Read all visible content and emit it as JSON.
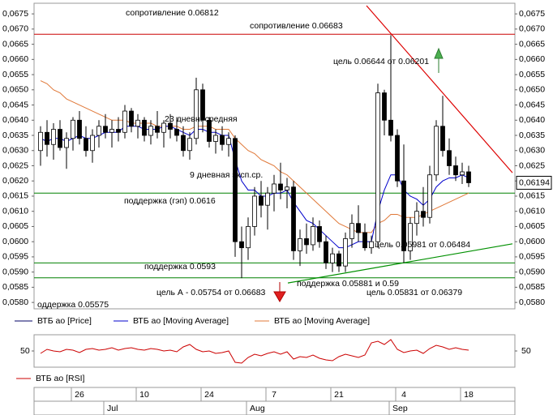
{
  "chart_data": {
    "type": "candlestick",
    "x": [
      null,
      null,
      null,
      null,
      null,
      null,
      "26",
      null,
      null,
      null,
      null,
      null,
      null,
      null,
      null,
      null,
      "10",
      null,
      null,
      null,
      null,
      null,
      null,
      null,
      null,
      null,
      "24",
      null,
      null,
      null,
      null,
      null,
      null,
      null,
      null,
      null,
      "7",
      null,
      null,
      null,
      null,
      null,
      null,
      null,
      null,
      null,
      "21",
      null,
      null,
      null,
      null,
      null,
      null,
      null,
      null,
      null,
      "4",
      null,
      null,
      null,
      null,
      null,
      null,
      null,
      null,
      null,
      "18"
    ],
    "x_months": [
      null,
      null,
      null,
      null,
      null,
      null,
      null,
      null,
      null,
      null,
      "Jul",
      null,
      null,
      null,
      null,
      null,
      null,
      null,
      null,
      null,
      null,
      null,
      null,
      null,
      null,
      null,
      null,
      null,
      null,
      null,
      null,
      null,
      "Aug",
      null,
      null,
      null,
      null,
      null,
      null,
      null,
      null,
      null,
      null,
      null,
      null,
      null,
      null,
      null,
      null,
      null,
      null,
      null,
      null,
      null,
      "Sep",
      null,
      null,
      null,
      null,
      null,
      null,
      null,
      null,
      null,
      null,
      null,
      null
    ],
    "series": [
      {
        "name": "ВТБ ао [Price]",
        "color": "#000066",
        "open": [
          0.063,
          0.0636,
          0.0632,
          0.0637,
          0.0631,
          0.0634,
          0.064,
          0.0634,
          0.063,
          0.0635,
          0.0638,
          0.0636,
          0.0637,
          0.0636,
          0.0643,
          0.0638,
          0.064,
          0.0635,
          0.0638,
          0.0636,
          0.0639,
          0.0637,
          0.0635,
          0.063,
          0.0634,
          0.065,
          0.064,
          0.0633,
          0.0635,
          0.0632,
          0.0634,
          0.06,
          0.0598,
          0.0605,
          0.0615,
          0.0612,
          0.0616,
          0.0619,
          0.0617,
          0.0618,
          0.0597,
          0.0601,
          0.0599,
          0.0605,
          0.06,
          0.0593,
          0.0596,
          0.0592,
          0.0601,
          0.0606,
          0.0603,
          0.0598,
          0.06,
          0.0649,
          0.064,
          0.0635,
          0.062,
          0.0597,
          0.0606,
          0.061,
          0.0608,
          0.0622,
          0.0638,
          0.063,
          0.0625,
          0.0622,
          0.0623
        ],
        "high": [
          0.0638,
          0.064,
          0.0639,
          0.064,
          0.0636,
          0.0641,
          0.0643,
          0.0638,
          0.0637,
          0.064,
          0.0642,
          0.064,
          0.0641,
          0.0645,
          0.0644,
          0.0642,
          0.0641,
          0.064,
          0.0643,
          0.064,
          0.0642,
          0.0641,
          0.0638,
          0.0636,
          0.0654,
          0.0652,
          0.0641,
          0.0637,
          0.0638,
          0.0636,
          0.0635,
          0.0605,
          0.0608,
          0.0618,
          0.062,
          0.0618,
          0.0622,
          0.0626,
          0.0621,
          0.062,
          0.0604,
          0.0606,
          0.0608,
          0.0607,
          0.0602,
          0.0598,
          0.0597,
          0.0603,
          0.0609,
          0.0612,
          0.0606,
          0.0602,
          0.0652,
          0.065,
          0.0668,
          0.0637,
          0.0632,
          0.0608,
          0.0613,
          0.0618,
          0.0625,
          0.064,
          0.0648,
          0.0634,
          0.0628,
          0.0626,
          0.0625
        ],
        "low": [
          0.0625,
          0.0628,
          0.0627,
          0.063,
          0.0624,
          0.063,
          0.0632,
          0.0628,
          0.0626,
          0.0631,
          0.0634,
          0.0631,
          0.0633,
          0.0634,
          0.0636,
          0.0634,
          0.0633,
          0.0632,
          0.0634,
          0.0631,
          0.0634,
          0.0633,
          0.0628,
          0.0627,
          0.0632,
          0.0636,
          0.0631,
          0.0629,
          0.063,
          0.0628,
          0.0595,
          0.0588,
          0.0594,
          0.0602,
          0.0608,
          0.0604,
          0.061,
          0.0614,
          0.0611,
          0.0594,
          0.0592,
          0.0596,
          0.0597,
          0.0598,
          0.0591,
          0.059,
          0.059,
          0.059,
          0.0598,
          0.06,
          0.0597,
          0.0596,
          0.0598,
          0.0635,
          0.0633,
          0.0618,
          0.0593,
          0.0594,
          0.0602,
          0.0605,
          0.0606,
          0.062,
          0.0628,
          0.0622,
          0.062,
          0.0619,
          0.0618
        ],
        "close": [
          0.0636,
          0.0632,
          0.0637,
          0.0631,
          0.0634,
          0.064,
          0.0634,
          0.063,
          0.0635,
          0.0638,
          0.0636,
          0.0637,
          0.0636,
          0.0643,
          0.0638,
          0.064,
          0.0635,
          0.0638,
          0.0636,
          0.0639,
          0.0637,
          0.0635,
          0.063,
          0.0634,
          0.065,
          0.064,
          0.0633,
          0.0635,
          0.0632,
          0.0634,
          0.06,
          0.0598,
          0.0605,
          0.0615,
          0.0612,
          0.0616,
          0.0619,
          0.0617,
          0.0618,
          0.0597,
          0.0601,
          0.0599,
          0.0605,
          0.06,
          0.0593,
          0.0596,
          0.0592,
          0.0601,
          0.0606,
          0.0603,
          0.0598,
          0.06,
          0.0649,
          0.064,
          0.0635,
          0.062,
          0.0597,
          0.0606,
          0.061,
          0.0608,
          0.0622,
          0.0638,
          0.063,
          0.0625,
          0.0622,
          0.0623,
          0.06194
        ]
      },
      {
        "name": "ВТБ ао [Moving Average]",
        "color": "#0000cc",
        "values": [
          0.0634,
          0.0633,
          0.0634,
          0.0634,
          0.0633,
          0.0634,
          0.0635,
          0.0634,
          0.0634,
          0.0635,
          0.0636,
          0.0636,
          0.0636,
          0.0638,
          0.0638,
          0.0638,
          0.0637,
          0.0637,
          0.0637,
          0.0638,
          0.0638,
          0.0637,
          0.0636,
          0.0635,
          0.0637,
          0.0637,
          0.0636,
          0.0636,
          0.0635,
          0.0635,
          0.0627,
          0.062,
          0.0617,
          0.0617,
          0.0615,
          0.0615,
          0.0616,
          0.0616,
          0.0617,
          0.0613,
          0.061,
          0.0607,
          0.0606,
          0.0604,
          0.0602,
          0.06,
          0.0598,
          0.0598,
          0.0599,
          0.06,
          0.06,
          0.06,
          0.061,
          0.0617,
          0.0622,
          0.0622,
          0.0617,
          0.0615,
          0.0614,
          0.0612,
          0.0614,
          0.0618,
          0.062,
          0.0621,
          0.0621,
          0.0622,
          0.0621
        ]
      },
      {
        "name": "ВТБ ао [Moving Average]",
        "color": "#e07838",
        "values": [
          0.0653,
          0.0652,
          0.065,
          0.0649,
          0.0647,
          0.0646,
          0.0645,
          0.0644,
          0.0643,
          0.0642,
          0.0641,
          0.064,
          0.064,
          0.064,
          0.0639,
          0.0639,
          0.0639,
          0.0639,
          0.0638,
          0.0638,
          0.0638,
          0.0638,
          0.0637,
          0.0637,
          0.0638,
          0.0638,
          0.0638,
          0.0637,
          0.0637,
          0.0637,
          0.0634,
          0.0632,
          0.063,
          0.0629,
          0.0627,
          0.0626,
          0.0625,
          0.0623,
          0.0622,
          0.062,
          0.0618,
          0.0616,
          0.0614,
          0.0612,
          0.061,
          0.0608,
          0.0606,
          0.0605,
          0.0604,
          0.0603,
          0.0603,
          0.0603,
          0.0606,
          0.0607,
          0.0609,
          0.0609,
          0.0608,
          0.0608,
          0.0608,
          0.0609,
          0.061,
          0.0611,
          0.0612,
          0.0613,
          0.0614,
          0.0615,
          0.0616
        ]
      }
    ],
    "ylim": [
      0.05779,
      0.06785
    ],
    "yticks": [
      {
        "value": 0.0675,
        "label": "0,0675"
      },
      {
        "value": 0.067,
        "label": "0,0670"
      },
      {
        "value": 0.0665,
        "label": "0,0665"
      },
      {
        "value": 0.066,
        "label": "0,0660"
      },
      {
        "value": 0.0655,
        "label": "0,0655"
      },
      {
        "value": 0.065,
        "label": "0,0650"
      },
      {
        "value": 0.0645,
        "label": "0,0645"
      },
      {
        "value": 0.064,
        "label": "0,0640"
      },
      {
        "value": 0.0635,
        "label": "0,0635"
      },
      {
        "value": 0.063,
        "label": "0,0630"
      },
      {
        "value": 0.0625,
        "label": "0,0625"
      },
      {
        "value": 0.062,
        "label": "0,0620"
      },
      {
        "value": 0.0615,
        "label": "0,0615"
      },
      {
        "value": 0.061,
        "label": "0,0610"
      },
      {
        "value": 0.0605,
        "label": "0,0605"
      },
      {
        "value": 0.06,
        "label": "0,0600"
      },
      {
        "value": 0.0595,
        "label": "0,0595"
      },
      {
        "value": 0.059,
        "label": "0,0590"
      },
      {
        "value": 0.0585,
        "label": "0,0585"
      },
      {
        "value": 0.058,
        "label": "0,0580"
      }
    ],
    "last_price": {
      "value": 0.06194,
      "label": "0,06194"
    },
    "levels": [
      {
        "value": 0.06683,
        "color": "#cc0000"
      },
      {
        "value": 0.0616,
        "color": "#008000"
      },
      {
        "value": 0.0593,
        "color": "#008000"
      },
      {
        "value": 0.05881,
        "color": "#008000"
      }
    ],
    "trendlines": [
      {
        "color": "#dd0000",
        "values": [
          0.06777,
          0.06227
        ]
      },
      {
        "color": "#009000",
        "values": [
          0.05864,
          0.05993
        ]
      }
    ],
    "annotations": [
      {
        "text": "сопротивление 0.06812",
        "color": "#cc0000"
      },
      {
        "text": "сопротивление 0.06683",
        "color": "#cc0000"
      },
      {
        "text": "цель 0.06644 от 0.06201",
        "color": "#007000"
      },
      {
        "text": "23 дневн. средняя",
        "color": "#d08040"
      },
      {
        "text": "9 дневная эксп.ср.",
        "color": "#0000cc"
      },
      {
        "text": "поддержка (гэп) 0.0616",
        "color": "#007000"
      },
      {
        "text": "цель 0.05981 от 0.06484",
        "color": "#cc0000"
      },
      {
        "text": "поддержка 0.0593",
        "color": "#007000"
      },
      {
        "text": "цель А - 0.05754 от 0.06683",
        "color": "#cc0000"
      },
      {
        "text": "поддержка  0.05881 и 0.59",
        "color": "#007000"
      },
      {
        "text": "цель 0.05831 от 0.06379",
        "color": "#cc0000"
      },
      {
        "text": "оддержка  0.05575",
        "color": "#007000"
      }
    ],
    "rsi": {
      "name": "ВТБ ао [RSI]",
      "color": "#cc0000",
      "ylim": [
        30,
        70
      ],
      "yticks": [
        50
      ],
      "values": [
        47,
        52,
        50,
        49,
        52,
        51,
        48,
        52,
        53,
        51,
        52,
        54,
        51,
        53,
        54,
        52,
        51,
        53,
        52,
        50,
        51,
        49,
        55,
        58,
        52,
        49,
        50,
        47,
        48,
        50,
        36,
        35,
        42,
        46,
        44,
        47,
        49,
        46,
        49,
        40,
        43,
        42,
        45,
        41,
        39,
        38,
        43,
        46,
        44,
        42,
        45,
        60,
        62,
        58,
        64,
        52,
        48,
        50,
        51,
        47,
        53,
        57,
        55,
        52,
        54,
        52,
        51
      ]
    }
  }
}
